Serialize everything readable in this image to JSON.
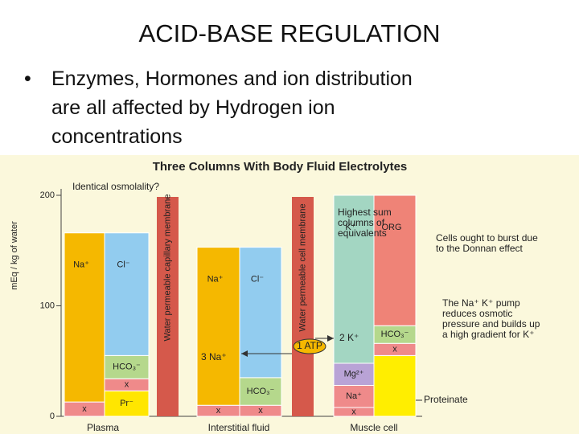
{
  "slide": {
    "title": "ACID-BASE REGULATION",
    "bullet_lines": [
      "Enzymes, Hormones and ion distribution",
      "are all affected by Hydrogen ion",
      "concentrations"
    ]
  },
  "chart_data": {
    "type": "gamblegram",
    "title": "Three Columns With Body Fluid Electrolytes",
    "y_label": "mEq / kg of water",
    "ylim": [
      0,
      200
    ],
    "yticks": [
      0,
      100,
      200
    ],
    "columns": [
      {
        "name": "Plasma",
        "stacks": [
          [
            {
              "label": "x",
              "value": 13,
              "color": "#ef8a8a"
            },
            {
              "label": "Na⁺",
              "value": 153,
              "color": "#f5b800"
            }
          ],
          [
            {
              "label": "Pr⁻",
              "value": 23,
              "color": "#ffe600"
            },
            {
              "label": "x",
              "value": 11,
              "color": "#ef8a8a"
            },
            {
              "label": "HCO₃⁻",
              "value": 21,
              "color": "#b5d88c"
            },
            {
              "label": "Cl⁻",
              "value": 111,
              "color": "#92ccef"
            }
          ]
        ]
      },
      {
        "name": "Interstitial fluid",
        "stacks": [
          [
            {
              "label": "x",
              "value": 10,
              "color": "#ef8a8a"
            },
            {
              "label": "Na⁺",
              "value": 143,
              "color": "#f5b800"
            }
          ],
          [
            {
              "label": "x",
              "value": 10,
              "color": "#ef8a8a"
            },
            {
              "label": "HCO₃⁻",
              "value": 25,
              "color": "#b5d88c"
            },
            {
              "label": "Cl⁻",
              "value": 118,
              "color": "#92ccef"
            }
          ]
        ]
      },
      {
        "name": "Muscle cell",
        "stacks": [
          [
            {
              "label": "x",
              "value": 8,
              "color": "#ef8a8a"
            },
            {
              "label": "Na⁺",
              "value": 20,
              "color": "#ef8a8a"
            },
            {
              "label": "Mg²⁺",
              "value": 20,
              "color": "#b9a3d6"
            },
            {
              "label": "K⁺",
              "value": 152,
              "color": "#a3d6c2"
            }
          ],
          [
            {
              "value": 55,
              "color": "#ffee00"
            },
            {
              "label": "x",
              "value": 11,
              "color": "#ef8a8a"
            },
            {
              "label": "HCO₃⁻",
              "value": 16,
              "color": "#b5d88c"
            },
            {
              "label": "ORG",
              "value": 118,
              "color": "#ef8377"
            }
          ]
        ]
      }
    ],
    "membranes": [
      "Water permeable capillary membrane",
      "Water permeable cell membrane"
    ],
    "annotations": [
      "Identical osmolality?",
      "Highest sum columns of equivalents",
      "Cells ought to burst due to the Donnan effect",
      "The Na⁺ K⁺ pump reduces osmotic pressure and builds up a high gradient for K⁺",
      "Proteinate",
      "3 Na⁺",
      "2 K⁺",
      "1 ATP"
    ]
  }
}
